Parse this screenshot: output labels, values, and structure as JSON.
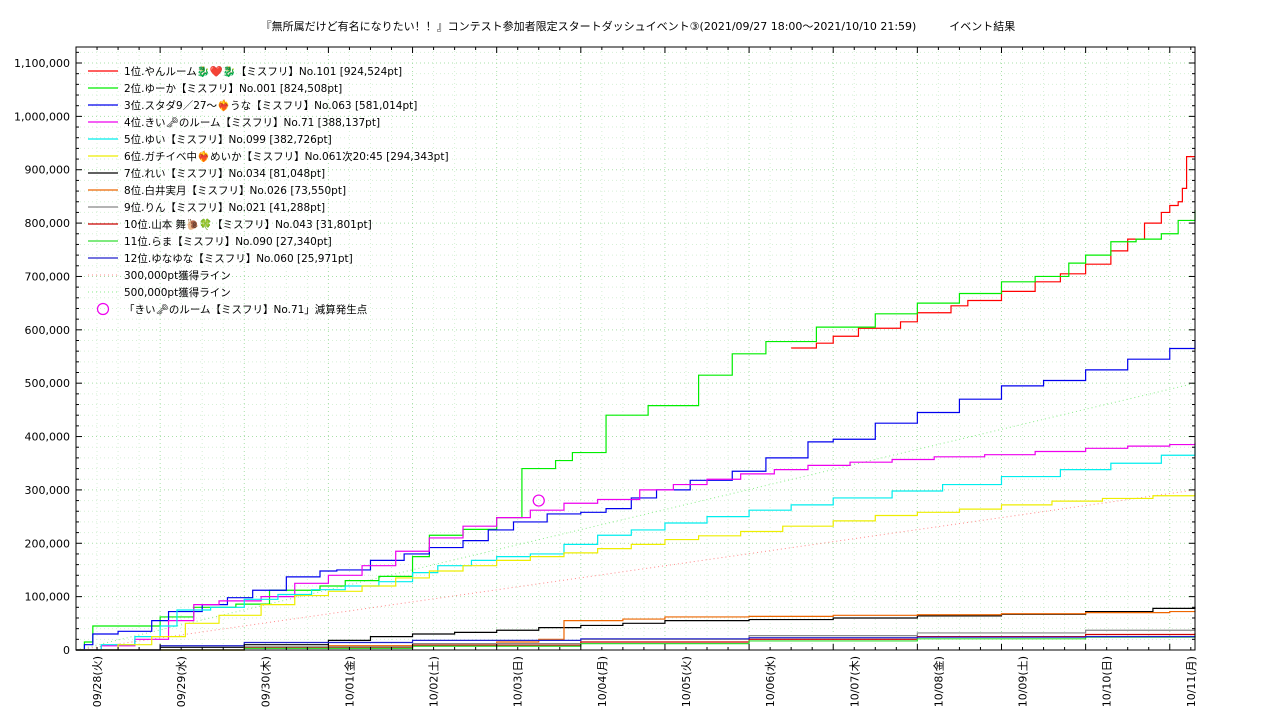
{
  "chart_data": {
    "type": "line",
    "title": "『無所属だけど有名になりたい！！』コンテスト参加者限定スタートダッシュイベント③(2021/09/27 18:00〜2021/10/10 21:59)　　　イベント結果",
    "xlabel": "",
    "ylabel": "",
    "ylim": [
      0,
      1130000
    ],
    "xlim": [
      0,
      13.3
    ],
    "grid": true,
    "legend_position": "top-left",
    "x_ticks": [
      "09/28(火)",
      "09/29(水)",
      "09/30(木)",
      "10/01(金)",
      "10/02(土)",
      "10/03(日)",
      "10/04(月)",
      "10/05(火)",
      "10/06(水)",
      "10/07(木)",
      "10/08(金)",
      "10/09(土)",
      "10/10(日)",
      "10/11(月)"
    ],
    "y_ticks": [
      "0",
      "100,000",
      "200,000",
      "300,000",
      "400,000",
      "500,000",
      "600,000",
      "700,000",
      "800,000",
      "900,000",
      "1,000,000",
      "1,100,000"
    ],
    "series": [
      {
        "name": "1位.やんルーム🐉❤️🐉【ミスフリ】No.101 [924,524pt]",
        "color": "#ff0000",
        "x": [
          8.5,
          8.8,
          9.0,
          9.3,
          9.8,
          10.0,
          10.4,
          10.6,
          11.0,
          11.4,
          11.7,
          12.0,
          12.3,
          12.5,
          12.7,
          12.9,
          13.0,
          13.1,
          13.15,
          13.2,
          13.3
        ],
        "y": [
          566000,
          575000,
          588000,
          603000,
          615000,
          632000,
          645000,
          655000,
          672000,
          690000,
          705000,
          723000,
          748000,
          770000,
          800000,
          820000,
          833000,
          840000,
          865000,
          924524,
          924524
        ]
      },
      {
        "name": "2位.ゆーか【ミスフリ】No.001 [824,508pt]",
        "color": "#00ee00",
        "x": [
          0,
          0.1,
          0.2,
          0.6,
          1.0,
          1.4,
          1.9,
          2.3,
          2.9,
          3.2,
          3.6,
          4.0,
          4.2,
          4.6,
          5.0,
          5.3,
          5.7,
          5.9,
          6.3,
          6.8,
          7.4,
          7.8,
          8.2,
          8.8,
          9.5,
          10.0,
          10.5,
          11.0,
          11.4,
          11.8,
          12.0,
          12.3,
          12.6,
          12.9,
          13.1,
          13.3
        ],
        "y": [
          0,
          15000,
          45000,
          45000,
          62000,
          80000,
          86000,
          112000,
          120000,
          130000,
          138000,
          175000,
          215000,
          226000,
          248000,
          340000,
          355000,
          370000,
          440000,
          458000,
          515000,
          555000,
          578000,
          605000,
          630000,
          650000,
          668000,
          690000,
          700000,
          725000,
          740000,
          765000,
          770000,
          780000,
          805000,
          824508
        ]
      },
      {
        "name": "3位.スタダ9／27〜❤️‍🔥うな【ミスフリ】No.063 [581,014pt]",
        "color": "#0000ee",
        "x": [
          0,
          0.1,
          0.2,
          0.5,
          0.9,
          1.1,
          1.5,
          1.8,
          2.1,
          2.5,
          2.9,
          3.1,
          3.5,
          3.9,
          4.2,
          4.6,
          4.9,
          5.2,
          5.6,
          6.0,
          6.3,
          6.6,
          6.9,
          7.3,
          7.8,
          8.2,
          8.7,
          9.0,
          9.5,
          10.0,
          10.5,
          11.0,
          11.5,
          12.0,
          12.5,
          13.0,
          13.3
        ],
        "y": [
          0,
          10000,
          30000,
          35000,
          55000,
          72000,
          85000,
          98000,
          112000,
          137000,
          148000,
          150000,
          168000,
          180000,
          192000,
          205000,
          225000,
          240000,
          255000,
          258000,
          265000,
          285000,
          300000,
          318000,
          335000,
          360000,
          390000,
          395000,
          425000,
          445000,
          470000,
          495000,
          505000,
          525000,
          545000,
          565000,
          581014
        ]
      },
      {
        "name": "4位.きい🗝のルーム【ミスフリ】No.71 [388,137pt]",
        "color": "#ee00ee",
        "x": [
          0,
          0.3,
          0.7,
          1.1,
          1.4,
          1.7,
          2.2,
          2.6,
          3.0,
          3.4,
          3.8,
          4.2,
          4.6,
          5.0,
          5.4,
          5.8,
          6.2,
          6.7,
          7.1,
          7.5,
          7.9,
          8.3,
          8.7,
          9.2,
          9.7,
          10.2,
          10.8,
          11.4,
          12.0,
          12.5,
          13.0,
          13.3
        ],
        "y": [
          0,
          8000,
          20000,
          55000,
          85000,
          92000,
          100000,
          125000,
          140000,
          158000,
          185000,
          210000,
          232000,
          248000,
          262000,
          275000,
          282000,
          300000,
          310000,
          320000,
          330000,
          338000,
          346000,
          352000,
          357000,
          362000,
          366000,
          372000,
          378000,
          382000,
          385000,
          388137
        ]
      },
      {
        "name": "5位.ゆい【ミスフリ】No.099 [382,726pt]",
        "color": "#00eeee",
        "x": [
          0,
          0.3,
          0.7,
          1.0,
          1.2,
          1.6,
          2.0,
          2.4,
          2.8,
          3.2,
          3.6,
          4.0,
          4.3,
          4.7,
          5.0,
          5.4,
          5.8,
          6.2,
          6.6,
          7.0,
          7.5,
          8.0,
          8.5,
          9.0,
          9.7,
          10.3,
          11.0,
          11.7,
          12.3,
          12.9,
          13.3
        ],
        "y": [
          0,
          10000,
          25000,
          45000,
          75000,
          80000,
          95000,
          104000,
          113000,
          120000,
          128000,
          145000,
          158000,
          168000,
          175000,
          180000,
          198000,
          215000,
          225000,
          238000,
          250000,
          262000,
          272000,
          285000,
          298000,
          310000,
          325000,
          338000,
          350000,
          365000,
          382726
        ]
      },
      {
        "name": "6位.ガチイベ中❤️‍🔥めいか【ミスフリ】No.061次20:45 [294,343pt]",
        "color": "#eeee00",
        "x": [
          0,
          0.5,
          0.9,
          1.3,
          1.7,
          2.2,
          2.6,
          3.0,
          3.4,
          3.8,
          4.2,
          4.6,
          5.0,
          5.4,
          5.8,
          6.2,
          6.6,
          7.0,
          7.4,
          7.9,
          8.4,
          9.0,
          9.5,
          10.0,
          10.5,
          11.0,
          11.6,
          12.2,
          12.8,
          13.3
        ],
        "y": [
          0,
          10000,
          25000,
          50000,
          65000,
          85000,
          102000,
          110000,
          120000,
          135000,
          148000,
          158000,
          168000,
          175000,
          182000,
          190000,
          198000,
          207000,
          214000,
          222000,
          232000,
          242000,
          252000,
          258000,
          264000,
          272000,
          279000,
          284000,
          289000,
          294343
        ]
      },
      {
        "name": "7位.れい【ミスフリ】No.034 [81,048pt]",
        "color": "#000000",
        "x": [
          0,
          1.0,
          2.0,
          3.0,
          3.5,
          4.0,
          4.5,
          5.0,
          5.5,
          6.0,
          6.5,
          7.0,
          8.0,
          9.0,
          10.0,
          11.0,
          12.0,
          12.8,
          13.3
        ],
        "y": [
          0,
          5000,
          10000,
          18000,
          25000,
          30000,
          33000,
          37000,
          42000,
          46000,
          50000,
          55000,
          57000,
          60000,
          64000,
          67000,
          72000,
          78000,
          81048
        ]
      },
      {
        "name": "8位.白井実月【ミスフリ】No.026 [73,550pt]",
        "color": "#ee6600",
        "x": [
          0,
          2.0,
          3.0,
          4.0,
          5.0,
          5.5,
          5.8,
          6.5,
          7.0,
          8.0,
          9.0,
          10.0,
          11.0,
          12.0,
          13.0,
          13.3
        ],
        "y": [
          0,
          5000,
          8000,
          12000,
          15000,
          20000,
          55000,
          58000,
          62000,
          63000,
          65000,
          66000,
          68000,
          70000,
          72000,
          73550
        ]
      },
      {
        "name": "9位.りん【ミスフリ】No.021 [41,288pt]",
        "color": "#888888",
        "x": [
          0,
          2.0,
          4.0,
          6.0,
          8.0,
          10.0,
          12.0,
          13.3
        ],
        "y": [
          0,
          6000,
          12000,
          20000,
          27000,
          32000,
          37000,
          41288
        ]
      },
      {
        "name": "10位.山本 舞🐌🍀【ミスフリ】No.043 [31,801pt]",
        "color": "#cc0000",
        "x": [
          0,
          2.0,
          4.0,
          6.0,
          8.0,
          10.0,
          12.0,
          13.3
        ],
        "y": [
          0,
          4000,
          9000,
          15000,
          20000,
          25000,
          29000,
          31801
        ]
      },
      {
        "name": "11位.らま【ミスフリ】No.090 [27,340pt]",
        "color": "#33dd33",
        "x": [
          0,
          2.0,
          4.0,
          6.0,
          8.0,
          10.0,
          12.0,
          13.3
        ],
        "y": [
          0,
          3000,
          7000,
          12000,
          17000,
          21000,
          24000,
          27340
        ]
      },
      {
        "name": "12位.ゆなゆな【ミスフリ】No.060 [25,971pt]",
        "color": "#2222cc",
        "x": [
          0,
          1.0,
          2.0,
          4.0,
          6.0,
          8.0,
          10.0,
          12.0,
          13.3
        ],
        "y": [
          0,
          8000,
          14000,
          18000,
          21000,
          23000,
          24000,
          25000,
          25971
        ]
      }
    ],
    "reference_lines": [
      {
        "name": "300,000pt獲得ライン",
        "color": "#ff8888",
        "x": [
          0,
          13.3
        ],
        "y": [
          0,
          300000
        ]
      },
      {
        "name": "500,000pt獲得ライン",
        "color": "#88ee88",
        "x": [
          0,
          13.3
        ],
        "y": [
          0,
          500000
        ]
      }
    ],
    "markers": [
      {
        "name": "「きい🗝のルーム【ミスフリ】No.71」減算発生点",
        "color": "#ee00ee",
        "x": [
          5.5
        ],
        "y": [
          280000
        ]
      }
    ]
  }
}
